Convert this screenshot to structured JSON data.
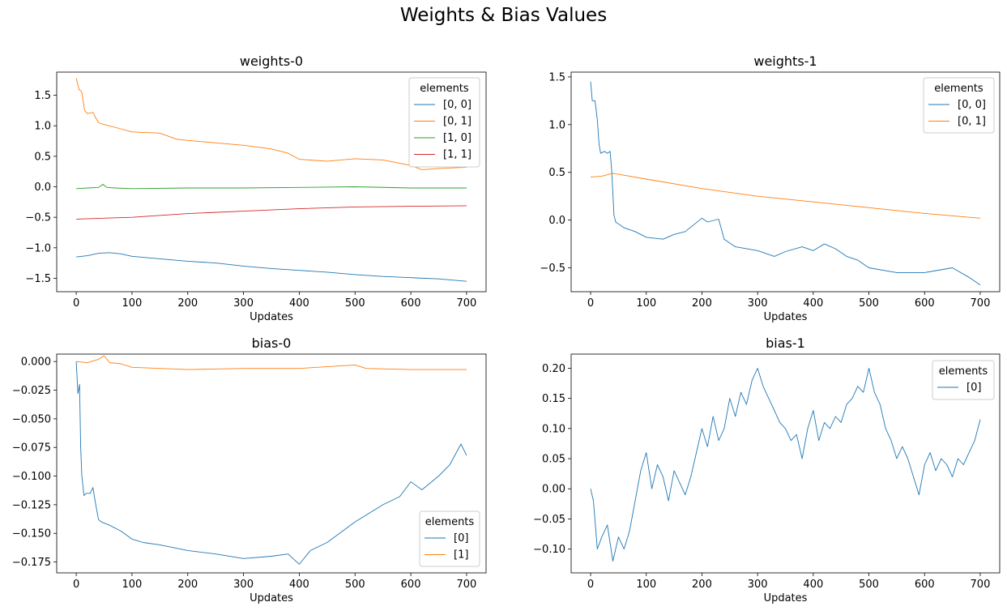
{
  "figure": {
    "title": "Weights & Bias Values"
  },
  "chart_data": [
    {
      "type": "line",
      "title": "weights-0",
      "xlabel": "Updates",
      "ylabel": "",
      "xlim": [
        -35,
        735
      ],
      "ylim": [
        -1.72,
        1.88
      ],
      "xticks": [
        0,
        100,
        200,
        300,
        400,
        500,
        600,
        700
      ],
      "yticks": [
        -1.5,
        -1.0,
        -0.5,
        0.0,
        0.5,
        1.0,
        1.5
      ],
      "ytick_labels": [
        "−1.5",
        "−1.0",
        "−0.5",
        "0.0",
        "0.5",
        "1.0",
        "1.5"
      ],
      "legend": {
        "title": "elements",
        "placement": "upper right"
      },
      "series": [
        {
          "name": "[0, 0]",
          "color": "#1f77b4",
          "x": [
            0,
            20,
            40,
            60,
            80,
            100,
            150,
            200,
            250,
            300,
            350,
            400,
            450,
            500,
            550,
            600,
            650,
            700
          ],
          "y": [
            -1.15,
            -1.13,
            -1.09,
            -1.08,
            -1.1,
            -1.14,
            -1.18,
            -1.22,
            -1.25,
            -1.3,
            -1.34,
            -1.37,
            -1.4,
            -1.44,
            -1.47,
            -1.49,
            -1.51,
            -1.55
          ]
        },
        {
          "name": "[0, 1]",
          "color": "#ff7f0e",
          "x": [
            0,
            5,
            10,
            15,
            20,
            30,
            35,
            40,
            50,
            80,
            100,
            150,
            180,
            200,
            250,
            300,
            350,
            380,
            400,
            450,
            500,
            550,
            600,
            620,
            650,
            700
          ],
          "y": [
            1.78,
            1.6,
            1.55,
            1.25,
            1.2,
            1.22,
            1.13,
            1.05,
            1.02,
            0.95,
            0.9,
            0.88,
            0.78,
            0.76,
            0.72,
            0.68,
            0.62,
            0.55,
            0.45,
            0.42,
            0.46,
            0.44,
            0.35,
            0.28,
            0.3,
            0.32
          ]
        },
        {
          "name": "[1, 0]",
          "color": "#2ca02c",
          "x": [
            0,
            20,
            40,
            48,
            55,
            70,
            100,
            200,
            300,
            400,
            500,
            600,
            700
          ],
          "y": [
            -0.03,
            -0.02,
            -0.01,
            0.04,
            -0.01,
            -0.02,
            -0.03,
            -0.02,
            -0.02,
            -0.01,
            0.0,
            -0.02,
            -0.02
          ]
        },
        {
          "name": "[1, 1]",
          "color": "#d62728",
          "x": [
            0,
            100,
            200,
            300,
            400,
            500,
            600,
            700
          ],
          "y": [
            -0.53,
            -0.5,
            -0.44,
            -0.4,
            -0.36,
            -0.33,
            -0.32,
            -0.31
          ]
        }
      ]
    },
    {
      "type": "line",
      "title": "weights-1",
      "xlabel": "Updates",
      "ylabel": "",
      "xlim": [
        -35,
        735
      ],
      "ylim": [
        -0.75,
        1.55
      ],
      "xticks": [
        0,
        100,
        200,
        300,
        400,
        500,
        600,
        700
      ],
      "yticks": [
        -0.5,
        0.0,
        0.5,
        1.0,
        1.5
      ],
      "ytick_labels": [
        "−0.5",
        "0.0",
        "0.5",
        "1.0",
        "1.5"
      ],
      "legend": {
        "title": "elements",
        "placement": "upper right"
      },
      "series": [
        {
          "name": "[0, 0]",
          "color": "#1f77b4",
          "x": [
            0,
            3,
            8,
            12,
            15,
            18,
            25,
            30,
            35,
            38,
            42,
            45,
            60,
            80,
            100,
            130,
            150,
            170,
            200,
            210,
            230,
            240,
            260,
            300,
            330,
            350,
            380,
            400,
            420,
            440,
            460,
            480,
            500,
            550,
            600,
            650,
            680,
            700
          ],
          "y": [
            1.45,
            1.25,
            1.25,
            1.05,
            0.8,
            0.7,
            0.72,
            0.7,
            0.72,
            0.5,
            0.05,
            -0.02,
            -0.08,
            -0.12,
            -0.18,
            -0.2,
            -0.15,
            -0.12,
            0.02,
            -0.02,
            0.01,
            -0.2,
            -0.28,
            -0.32,
            -0.38,
            -0.33,
            -0.28,
            -0.32,
            -0.25,
            -0.3,
            -0.38,
            -0.42,
            -0.5,
            -0.55,
            -0.55,
            -0.5,
            -0.6,
            -0.68
          ]
        },
        {
          "name": "[0, 1]",
          "color": "#ff7f0e",
          "x": [
            0,
            20,
            40,
            100,
            200,
            300,
            400,
            500,
            600,
            700
          ],
          "y": [
            0.45,
            0.46,
            0.49,
            0.43,
            0.33,
            0.25,
            0.19,
            0.13,
            0.07,
            0.02
          ]
        }
      ]
    },
    {
      "type": "line",
      "title": "bias-0",
      "xlabel": "Updates",
      "ylabel": "",
      "xlim": [
        -35,
        735
      ],
      "ylim": [
        -0.1845,
        0.0065
      ],
      "xticks": [
        0,
        100,
        200,
        300,
        400,
        500,
        600,
        700
      ],
      "yticks": [
        0.0,
        -0.025,
        -0.05,
        -0.075,
        -0.1,
        -0.125,
        -0.15,
        -0.175
      ],
      "ytick_labels": [
        "0.000",
        "−0.025",
        "−0.050",
        "−0.075",
        "−0.100",
        "−0.125",
        "−0.150",
        "−0.175"
      ],
      "legend": {
        "title": "elements",
        "placement": "lower right"
      },
      "series": [
        {
          "name": "[0]",
          "color": "#1f77b4",
          "x": [
            0,
            3,
            6,
            8,
            10,
            14,
            18,
            25,
            30,
            35,
            40,
            45,
            60,
            80,
            100,
            120,
            150,
            200,
            250,
            300,
            350,
            380,
            400,
            420,
            450,
            500,
            550,
            580,
            600,
            620,
            650,
            670,
            690,
            700
          ],
          "y": [
            0.0,
            -0.028,
            -0.02,
            -0.075,
            -0.1,
            -0.117,
            -0.115,
            -0.115,
            -0.11,
            -0.125,
            -0.138,
            -0.14,
            -0.143,
            -0.148,
            -0.155,
            -0.158,
            -0.16,
            -0.165,
            -0.168,
            -0.172,
            -0.17,
            -0.168,
            -0.177,
            -0.165,
            -0.158,
            -0.14,
            -0.125,
            -0.118,
            -0.105,
            -0.112,
            -0.1,
            -0.09,
            -0.072,
            -0.082
          ]
        },
        {
          "name": "[1]",
          "color": "#ff7f0e",
          "x": [
            0,
            20,
            40,
            50,
            60,
            80,
            100,
            200,
            300,
            400,
            500,
            520,
            600,
            700
          ],
          "y": [
            0.0,
            -0.001,
            0.002,
            0.005,
            -0.001,
            -0.002,
            -0.005,
            -0.007,
            -0.006,
            -0.006,
            -0.003,
            -0.006,
            -0.007,
            -0.007
          ]
        }
      ]
    },
    {
      "type": "line",
      "title": "bias-1",
      "xlabel": "Updates",
      "ylabel": "",
      "xlim": [
        -35,
        735
      ],
      "ylim": [
        -0.1395,
        0.2235
      ],
      "xticks": [
        0,
        100,
        200,
        300,
        400,
        500,
        600,
        700
      ],
      "yticks": [
        -0.1,
        -0.05,
        0.0,
        0.05,
        0.1,
        0.15,
        0.2
      ],
      "ytick_labels": [
        "−0.10",
        "−0.05",
        "0.00",
        "0.05",
        "0.10",
        "0.15",
        "0.20"
      ],
      "legend": {
        "title": "elements",
        "placement": "upper right"
      },
      "series": [
        {
          "name": "[0]",
          "color": "#1f77b4",
          "x": [
            0,
            5,
            12,
            20,
            30,
            40,
            50,
            60,
            70,
            80,
            90,
            100,
            110,
            120,
            130,
            140,
            150,
            160,
            170,
            180,
            190,
            200,
            210,
            220,
            230,
            240,
            250,
            260,
            270,
            280,
            290,
            300,
            310,
            320,
            330,
            340,
            350,
            360,
            370,
            380,
            390,
            400,
            410,
            420,
            430,
            440,
            450,
            460,
            470,
            480,
            490,
            500,
            510,
            520,
            530,
            540,
            550,
            560,
            570,
            580,
            590,
            600,
            610,
            620,
            630,
            640,
            650,
            660,
            670,
            680,
            690,
            700
          ],
          "y": [
            0.0,
            -0.02,
            -0.1,
            -0.08,
            -0.06,
            -0.12,
            -0.08,
            -0.1,
            -0.07,
            -0.02,
            0.03,
            0.06,
            0.0,
            0.04,
            0.02,
            -0.02,
            0.03,
            0.01,
            -0.01,
            0.02,
            0.06,
            0.1,
            0.07,
            0.12,
            0.08,
            0.1,
            0.15,
            0.12,
            0.16,
            0.14,
            0.18,
            0.2,
            0.17,
            0.15,
            0.13,
            0.11,
            0.1,
            0.08,
            0.09,
            0.05,
            0.1,
            0.13,
            0.08,
            0.11,
            0.1,
            0.12,
            0.11,
            0.14,
            0.15,
            0.17,
            0.16,
            0.2,
            0.16,
            0.14,
            0.1,
            0.08,
            0.05,
            0.07,
            0.05,
            0.02,
            -0.01,
            0.04,
            0.06,
            0.03,
            0.05,
            0.04,
            0.02,
            0.05,
            0.04,
            0.06,
            0.08,
            0.115
          ]
        }
      ]
    }
  ]
}
